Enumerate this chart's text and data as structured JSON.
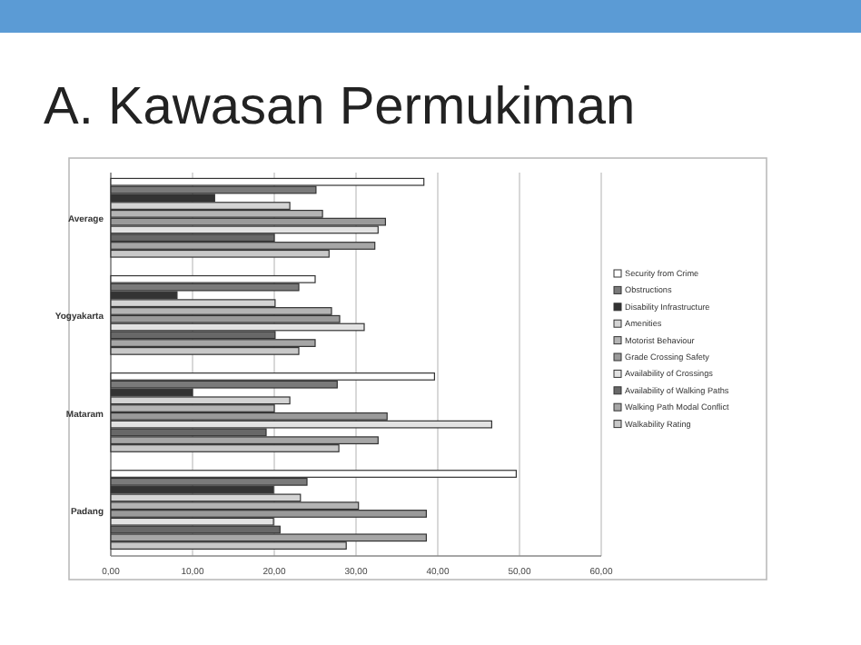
{
  "chart_data": {
    "type": "bar",
    "orientation": "horizontal",
    "title": "A. Kawasan Permukiman",
    "categories": [
      "Average",
      "Yogyakarta",
      "Mataram",
      "Padang"
    ],
    "series": [
      {
        "name": "Security from Crime",
        "color": "#ffffff",
        "values": [
          38.3,
          25.0,
          39.6,
          49.6
        ]
      },
      {
        "name": "Obstructions",
        "color": "#7a7a7a",
        "values": [
          25.1,
          23.0,
          27.7,
          24.0
        ]
      },
      {
        "name": "Disability Infrastructure",
        "color": "#333333",
        "values": [
          12.7,
          8.1,
          10.0,
          19.9
        ]
      },
      {
        "name": "Amenities",
        "color": "#d4d4d4",
        "values": [
          21.9,
          20.1,
          21.9,
          23.2
        ]
      },
      {
        "name": "Motorist Behaviour",
        "color": "#b4b4b4",
        "values": [
          25.9,
          27.0,
          20.0,
          30.3
        ]
      },
      {
        "name": "Grade Crossing Safety",
        "color": "#9a9a9a",
        "values": [
          33.6,
          28.0,
          33.8,
          38.6
        ]
      },
      {
        "name": "Availability of Crossings",
        "color": "#e2e2e2",
        "values": [
          32.7,
          31.0,
          46.6,
          19.9
        ]
      },
      {
        "name": "Availability of Walking Paths",
        "color": "#686868",
        "values": [
          20.0,
          20.1,
          19.0,
          20.7
        ]
      },
      {
        "name": "Walking Path Modal Conflict",
        "color": "#a6a6a6",
        "values": [
          32.3,
          25.0,
          32.7,
          38.6
        ]
      },
      {
        "name": "Walkability Rating",
        "color": "#c8c8c8",
        "values": [
          26.7,
          23.0,
          27.9,
          28.8
        ]
      }
    ],
    "xlim": [
      0,
      60
    ],
    "xticks": [
      {
        "value": 0,
        "label": "0,00"
      },
      {
        "value": 10,
        "label": "10,00"
      },
      {
        "value": 20,
        "label": "20,00"
      },
      {
        "value": 30,
        "label": "30,00"
      },
      {
        "value": 40,
        "label": "40,00"
      },
      {
        "value": 50,
        "label": "50,00"
      },
      {
        "value": 60,
        "label": "60,00"
      }
    ],
    "grid": "x",
    "legend": "right"
  }
}
